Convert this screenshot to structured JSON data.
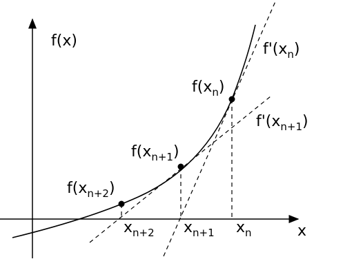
{
  "axes": {
    "y_label": "f(x)",
    "x_label": "x"
  },
  "point_labels": [
    {
      "prefix": "f(x",
      "sub": "n",
      "suffix": ")"
    },
    {
      "prefix": "f(x",
      "sub": "n+1",
      "suffix": ")"
    },
    {
      "prefix": "f(x",
      "sub": "n+2",
      "suffix": ")"
    }
  ],
  "tangent_labels": [
    {
      "prefix": "f'(x",
      "sub": "n",
      "suffix": ")"
    },
    {
      "prefix": "f'(x",
      "sub": "n+1",
      "suffix": ")"
    }
  ],
  "x_ticks": [
    {
      "base": "x",
      "sub": "n"
    },
    {
      "base": "x",
      "sub": "n+1"
    },
    {
      "base": "x",
      "sub": "n+2"
    }
  ]
}
